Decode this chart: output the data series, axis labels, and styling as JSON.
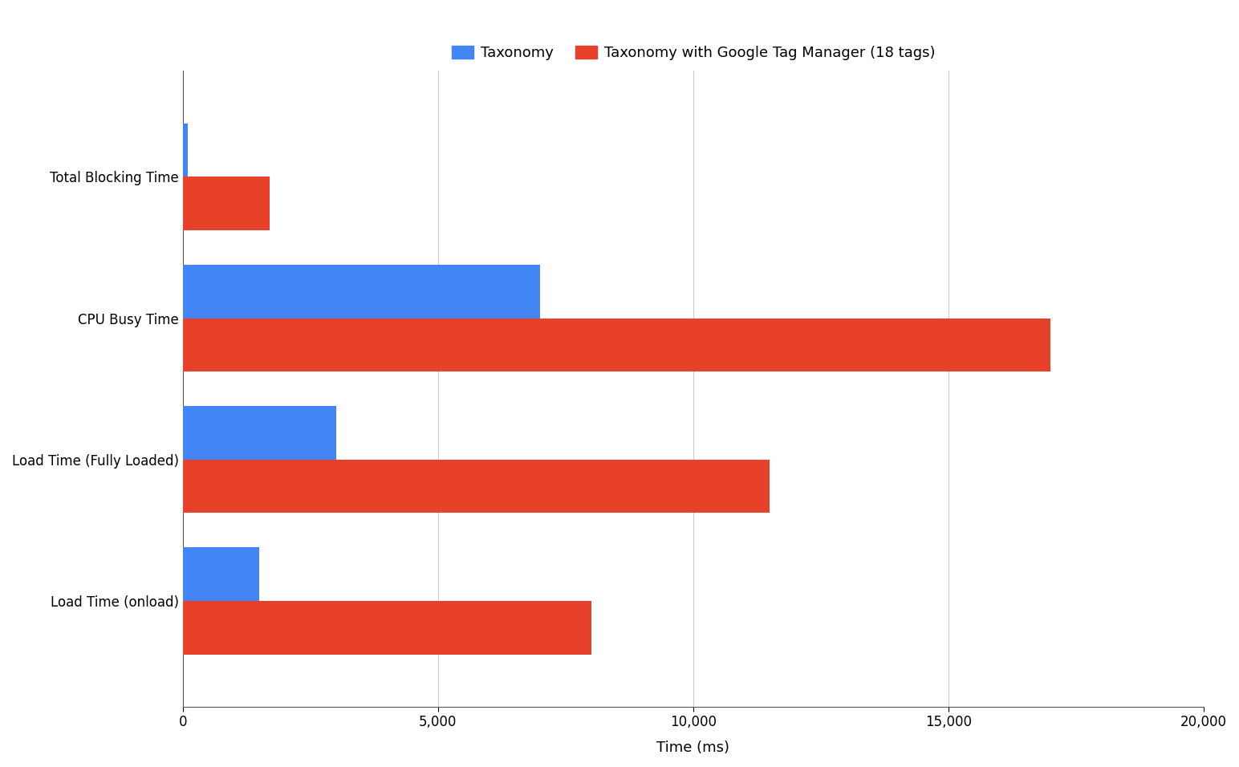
{
  "categories": [
    "Load Time (onload)",
    "Load Time (Fully Loaded)",
    "CPU Busy Time",
    "Total Blocking Time"
  ],
  "series": [
    {
      "label": "Taxonomy",
      "color": "#4285F4",
      "values": [
        1500,
        3000,
        7000,
        100
      ]
    },
    {
      "label": "Taxonomy with Google Tag Manager (18 tags)",
      "color": "#E8412A",
      "values": [
        8000,
        11500,
        17000,
        1700
      ]
    }
  ],
  "xlabel": "Time (ms)",
  "xlim": [
    0,
    20000
  ],
  "xticks": [
    0,
    5000,
    10000,
    15000,
    20000
  ],
  "xtick_labels": [
    "0",
    "5,000",
    "10,000",
    "15,000",
    "20,000"
  ],
  "bar_height": 0.38,
  "background_color": "#ffffff",
  "grid_color": "#cccccc",
  "title_fontsize": 13,
  "label_fontsize": 13,
  "tick_fontsize": 12
}
